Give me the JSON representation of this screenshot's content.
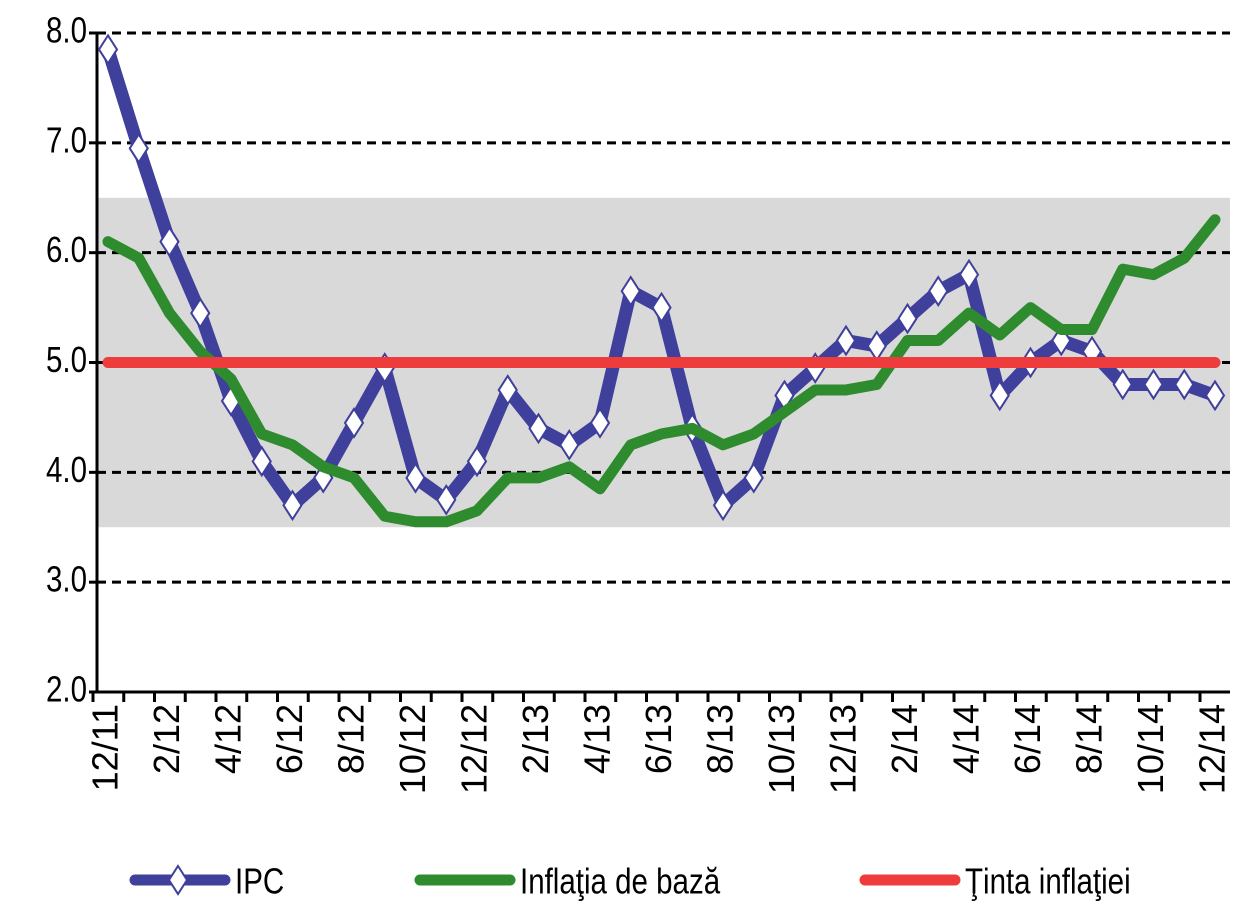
{
  "chart_data": {
    "type": "line",
    "categories": [
      "12/11",
      null,
      "2/12",
      null,
      "4/12",
      null,
      "6/12",
      null,
      "8/12",
      null,
      "10/12",
      null,
      "12/12",
      null,
      "2/13",
      null,
      "4/13",
      null,
      "6/13",
      null,
      "8/13",
      null,
      "10/13",
      null,
      "12/13",
      null,
      "2/14",
      null,
      "4/14",
      null,
      "6/14",
      null,
      "8/14",
      null,
      "10/14",
      null,
      "12/14"
    ],
    "series": [
      {
        "name": "IPC",
        "color": "#3f3f9c",
        "marker": "diamond",
        "values": [
          7.85,
          6.95,
          6.1,
          5.45,
          4.65,
          4.1,
          3.7,
          3.95,
          4.45,
          4.95,
          3.95,
          3.75,
          4.1,
          4.75,
          4.4,
          4.25,
          4.45,
          5.65,
          5.5,
          4.4,
          3.7,
          3.95,
          4.7,
          4.95,
          5.2,
          5.15,
          5.4,
          5.65,
          5.8,
          4.7,
          5.0,
          5.2,
          5.1,
          4.8,
          4.8,
          4.8,
          4.7
        ]
      },
      {
        "name": "Inflaţia de bază",
        "color": "#2e8b2e",
        "values": [
          6.1,
          5.95,
          5.45,
          5.1,
          4.85,
          4.35,
          4.25,
          4.05,
          3.95,
          3.6,
          3.55,
          3.55,
          3.65,
          3.95,
          3.95,
          4.05,
          3.85,
          4.25,
          4.35,
          4.4,
          4.25,
          4.35,
          4.55,
          4.75,
          4.75,
          4.8,
          5.2,
          5.2,
          5.45,
          5.25,
          5.5,
          5.3,
          5.3,
          5.85,
          5.8,
          5.95,
          6.3
        ]
      },
      {
        "name": "Ţinta inflaţiei",
        "color": "#ee3b3b",
        "values": [
          5,
          5,
          5,
          5,
          5,
          5,
          5,
          5,
          5,
          5,
          5,
          5,
          5,
          5,
          5,
          5,
          5,
          5,
          5,
          5,
          5,
          5,
          5,
          5,
          5,
          5,
          5,
          5,
          5,
          5,
          5,
          5,
          5,
          5,
          5,
          5,
          5
        ]
      }
    ],
    "tolerance_band": [
      3.5,
      6.5
    ],
    "band_color": "#d9d9d9",
    "ylim": [
      2,
      8
    ],
    "yticks": [
      {
        "value": 2,
        "label": "2.0"
      },
      {
        "value": 3,
        "label": "3.0"
      },
      {
        "value": 4,
        "label": "4.0"
      },
      {
        "value": 5,
        "label": "5.0"
      },
      {
        "value": 6,
        "label": "6.0"
      },
      {
        "value": 7,
        "label": "7.0"
      },
      {
        "value": 8,
        "label": "8.0"
      }
    ],
    "grid": true,
    "legend": "bottom"
  }
}
